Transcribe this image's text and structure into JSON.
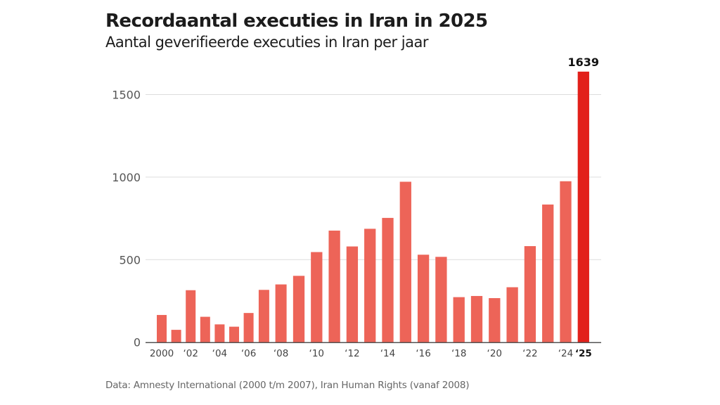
{
  "header": {
    "title": "Recordaantal executies in Iran in 2025",
    "subtitle": "Aantal geverifieerde executies in Iran per jaar"
  },
  "footer": {
    "source": "Data: Amnesty International (2000 t/m 2007), Iran Human Rights (vanaf 2008)"
  },
  "colors": {
    "bar": "#ED6458",
    "highlight": "#E2201A",
    "grid": "#dddddd",
    "axis": "#555555"
  },
  "chart_data": {
    "type": "bar",
    "title": "Recordaantal executies in Iran in 2025",
    "subtitle": "Aantal geverifieerde executies in Iran per jaar",
    "xlabel": "",
    "ylabel": "",
    "ylim": [
      0,
      1639
    ],
    "yticks": [
      0,
      500,
      1000,
      1500
    ],
    "ytick_labels": [
      "0",
      "500",
      "1000",
      "1500"
    ],
    "grid": true,
    "legend": "none",
    "categories": [
      "2000",
      "2001",
      "2002",
      "2003",
      "2004",
      "2005",
      "2006",
      "2007",
      "2008",
      "2009",
      "2010",
      "2011",
      "2012",
      "2013",
      "2014",
      "2015",
      "2016",
      "2017",
      "2018",
      "2019",
      "2020",
      "2021",
      "2022",
      "2023",
      "2024",
      "2025"
    ],
    "values": [
      165,
      75,
      315,
      154,
      108,
      94,
      177,
      317,
      350,
      402,
      546,
      676,
      580,
      687,
      753,
      972,
      530,
      517,
      273,
      280,
      267,
      333,
      582,
      834,
      975,
      1639
    ],
    "xtick_labels": [
      {
        "year": "2000",
        "label": "2000"
      },
      {
        "year": "2002",
        "label": "‘02"
      },
      {
        "year": "2004",
        "label": "‘04"
      },
      {
        "year": "2006",
        "label": "‘06"
      },
      {
        "year": "2008",
        "label": "‘08"
      },
      {
        "year": "2010",
        "label": "‘10"
      },
      {
        "year": "2012",
        "label": "‘12"
      },
      {
        "year": "2014",
        "label": "‘14"
      },
      {
        "year": "2016",
        "label": "‘16"
      },
      {
        "year": "2018",
        "label": "‘18"
      },
      {
        "year": "2020",
        "label": "‘20"
      },
      {
        "year": "2022",
        "label": "‘22"
      },
      {
        "year": "2024",
        "label": "‘24"
      },
      {
        "year": "2025",
        "label": "‘25",
        "highlight": true
      }
    ],
    "highlight": {
      "year": "2025",
      "value_label": "1639"
    },
    "source": "Data: Amnesty International (2000 t/m 2007), Iran Human Rights (vanaf 2008)"
  }
}
